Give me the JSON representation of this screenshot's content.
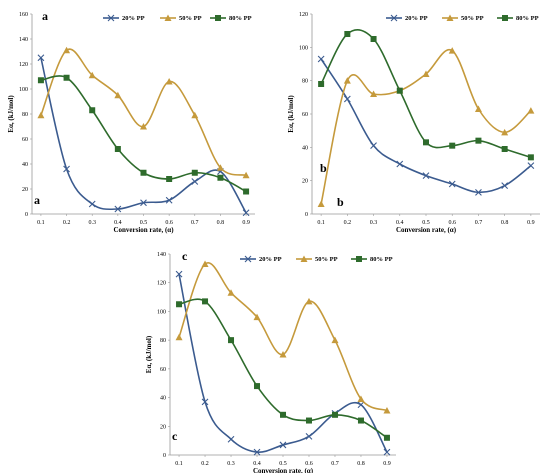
{
  "chart_data": [
    {
      "type": "line",
      "panel_label": "a",
      "title": "",
      "xlabel": "Conversion rate, (α)",
      "ylabel": "Eα, (kJ/mol)",
      "categories": [
        "0.1",
        "0.2",
        "0.3",
        "0.4",
        "0.5",
        "0.6",
        "0.7",
        "0.8",
        "0.9"
      ],
      "x": [
        0.1,
        0.2,
        0.3,
        0.4,
        0.5,
        0.6,
        0.7,
        0.8,
        0.9
      ],
      "yticks": [
        "0",
        "20",
        "40",
        "60",
        "80",
        "100",
        "120",
        "140",
        "160"
      ],
      "ylim": [
        0,
        160
      ],
      "grid": false,
      "legend": "top",
      "series": [
        {
          "name": "20% PP",
          "color": "#3b5b8f",
          "marker": "x",
          "values": [
            125,
            36,
            8,
            4,
            9,
            11,
            26,
            34,
            1
          ]
        },
        {
          "name": "50% PP",
          "color": "#c59a3c",
          "marker": "triangle",
          "values": [
            79,
            131,
            111,
            95,
            70,
            106,
            79,
            37,
            31
          ]
        },
        {
          "name": "80% PP",
          "color": "#2e6b2c",
          "marker": "square",
          "values": [
            107,
            109,
            83,
            52,
            33,
            28,
            33,
            29,
            18
          ]
        }
      ]
    },
    {
      "type": "line",
      "panel_label": "b",
      "title": "",
      "xlabel": "Conversion rate, (α)",
      "ylabel": "Eα, (kJ/mol)",
      "categories": [
        "0.1",
        "0.2",
        "0.3",
        "0.4",
        "0.5",
        "0.6",
        "0.7",
        "0.8",
        "0.9"
      ],
      "x": [
        0.1,
        0.2,
        0.3,
        0.4,
        0.5,
        0.6,
        0.7,
        0.8,
        0.9
      ],
      "yticks": [
        "0",
        "20",
        "40",
        "60",
        "80",
        "100",
        "120"
      ],
      "ylim": [
        0,
        120
      ],
      "grid": false,
      "legend": "top",
      "series": [
        {
          "name": "20% PP",
          "color": "#3b5b8f",
          "marker": "x",
          "values": [
            93,
            69,
            41,
            30,
            23,
            18,
            13,
            17,
            29
          ]
        },
        {
          "name": "50% PP",
          "color": "#c59a3c",
          "marker": "triangle",
          "values": [
            6,
            80,
            72,
            74,
            84,
            98,
            63,
            49,
            62
          ]
        },
        {
          "name": "80% PP",
          "color": "#2e6b2c",
          "marker": "square",
          "values": [
            78,
            108,
            105,
            74,
            43,
            41,
            44,
            39,
            34
          ]
        }
      ]
    },
    {
      "type": "line",
      "panel_label": "c",
      "title": "",
      "xlabel": "Conversion rate, (α)",
      "ylabel": "Eα, (kJ/mol)",
      "categories": [
        "0.1",
        "0.2",
        "0.3",
        "0.4",
        "0.5",
        "0.6",
        "0.7",
        "0.8",
        "0.9"
      ],
      "x": [
        0.1,
        0.2,
        0.3,
        0.4,
        0.5,
        0.6,
        0.7,
        0.8,
        0.9
      ],
      "yticks": [
        "0",
        "20",
        "40",
        "60",
        "80",
        "100",
        "120",
        "140"
      ],
      "ylim": [
        0,
        140
      ],
      "grid": false,
      "legend": "top",
      "series": [
        {
          "name": "20% PP",
          "color": "#3b5b8f",
          "marker": "x",
          "values": [
            126,
            37,
            11,
            2,
            7,
            13,
            29,
            35,
            2
          ]
        },
        {
          "name": "50% PP",
          "color": "#c59a3c",
          "marker": "triangle",
          "values": [
            82,
            133,
            113,
            96,
            70,
            107,
            80,
            39,
            31
          ]
        },
        {
          "name": "80% PP",
          "color": "#2e6b2c",
          "marker": "square",
          "values": [
            105,
            107,
            80,
            48,
            28,
            24,
            28,
            24,
            12
          ]
        }
      ]
    }
  ]
}
